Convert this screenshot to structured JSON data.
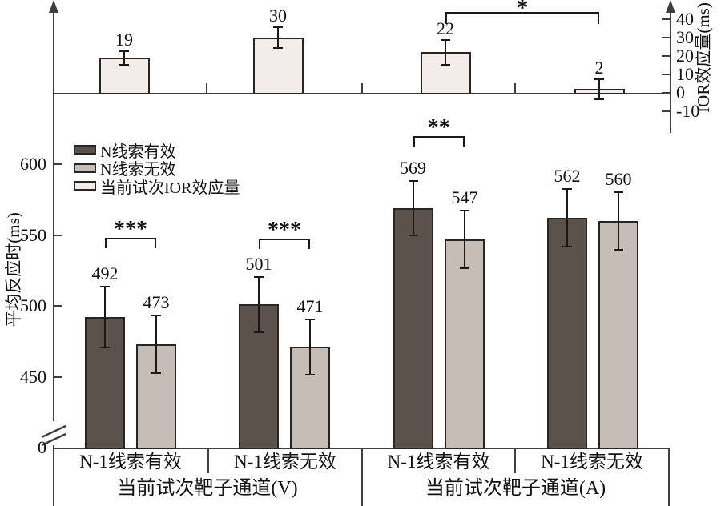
{
  "figure": {
    "bg": "#ffffff",
    "axis_color": "#3f3f3f",
    "bar_border": "#262626",
    "error_color": "#1a1a1a"
  },
  "legend": {
    "items": [
      {
        "label": "N线索有效",
        "color": "#5a524b"
      },
      {
        "label": "N线索无效",
        "color": "#c6beb6"
      },
      {
        "label": "当前试次IOR效应量",
        "color": "#f3ece8"
      }
    ]
  },
  "chart_data": [
    {
      "id": "ior-effect-panel",
      "type": "bar",
      "ylabel": "IOR效应量(ms)",
      "ylim": [
        -10,
        40
      ],
      "yticks": [
        40,
        30,
        20,
        10,
        0,
        -10
      ],
      "bar_color": "#f3ece8",
      "categories": [
        "V·N-1线索有效",
        "V·N-1线索无效",
        "A·N-1线索有效",
        "A·N-1线索无效"
      ],
      "values": [
        19,
        30,
        22,
        2
      ],
      "errors": [
        4,
        6,
        7,
        6
      ],
      "significance": [
        {
          "from": 2,
          "to": 3,
          "label": "*"
        }
      ]
    },
    {
      "id": "mean-rt-panel",
      "type": "bar",
      "ylabel": "平均反应时(ms)",
      "yticks": [
        600,
        550,
        500,
        450
      ],
      "baseline_tick": 0,
      "axis_break": true,
      "categories": [
        "N-1线索有效",
        "N-1线索无效",
        "N-1线索有效",
        "N-1线索无效"
      ],
      "group_labels": [
        "当前试次靶子通道(V)",
        "当前试次靶子通道(A)"
      ],
      "series": [
        {
          "name": "N线索有效",
          "color": "#5a524b",
          "values": [
            492,
            501,
            569,
            562
          ],
          "errors": [
            22,
            20,
            20,
            21
          ]
        },
        {
          "name": "N线索无效",
          "color": "#c6beb6",
          "values": [
            473,
            471,
            547,
            560
          ],
          "errors": [
            21,
            20,
            21,
            21
          ]
        }
      ],
      "significance": [
        {
          "group": 0,
          "label": "***"
        },
        {
          "group": 1,
          "label": "***"
        },
        {
          "group": 2,
          "label": "**"
        }
      ]
    }
  ]
}
